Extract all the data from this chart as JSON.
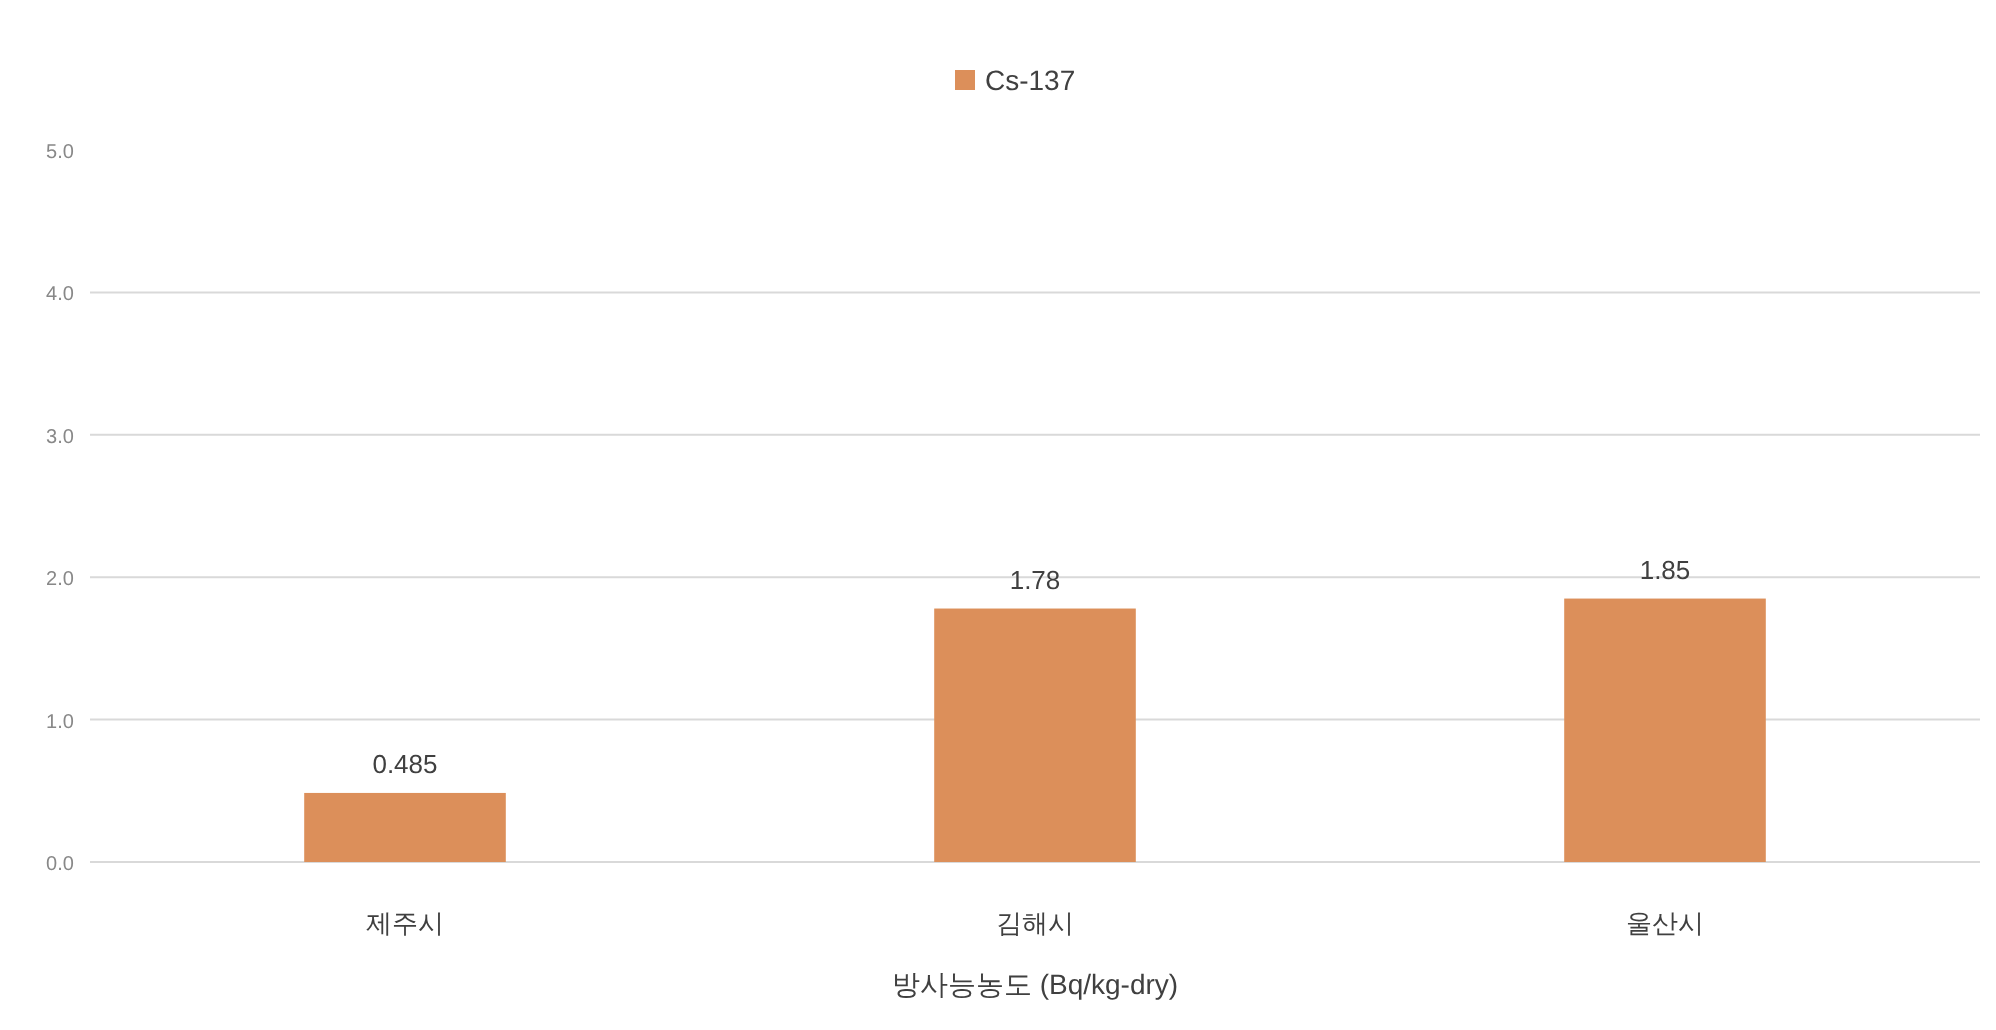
{
  "chart_data": {
    "type": "bar",
    "xlabel": "방사능농도 (Bq/kg-dry)",
    "categories": [
      "제주시",
      "김해시",
      "울산시"
    ],
    "series": [
      {
        "name": "Cs-137",
        "color": "#dc8f5a",
        "values": [
          0.485,
          1.78,
          1.85
        ]
      }
    ],
    "ylim": [
      0,
      5
    ],
    "yticks": [
      {
        "value": 0,
        "label": "0.0"
      },
      {
        "value": 1,
        "label": "1.0"
      },
      {
        "value": 2,
        "label": "2.0"
      },
      {
        "value": 3,
        "label": "3.0"
      },
      {
        "value": 4,
        "label": "4.0"
      },
      {
        "value": 5,
        "label": "5.0"
      }
    ],
    "grid": "y",
    "legend": "top",
    "data_labels": true
  }
}
